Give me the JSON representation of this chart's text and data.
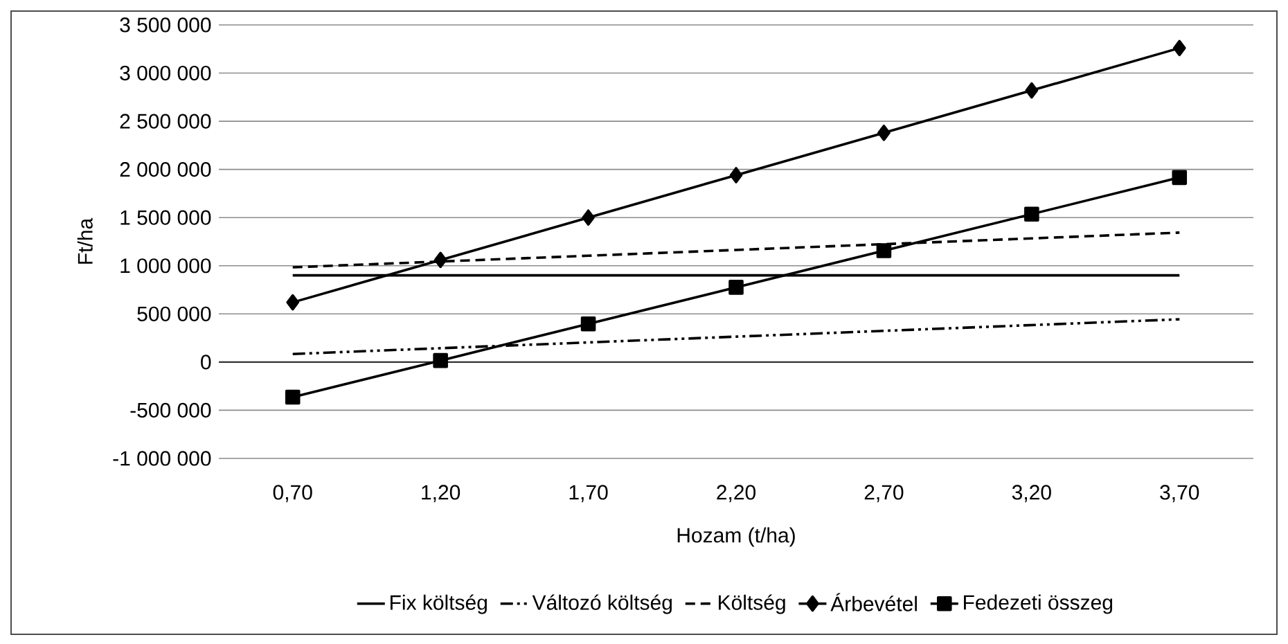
{
  "chart_data": {
    "type": "line",
    "xlabel": "Hozam (t/ha)",
    "ylabel": "Ft/ha",
    "categories": [
      "0,70",
      "1,20",
      "1,70",
      "2,20",
      "2,70",
      "3,20",
      "3,70"
    ],
    "series": [
      {
        "name": "Fix költség",
        "color": "#000000",
        "line_style": "solid",
        "marker": "none",
        "values": [
          900000,
          900000,
          900000,
          900000,
          900000,
          900000,
          900000
        ]
      },
      {
        "name": "Változó költség",
        "color": "#000000",
        "line_style": "dashdotdot",
        "marker": "none",
        "values": [
          84000,
          144000,
          204000,
          264000,
          324000,
          384000,
          444000
        ]
      },
      {
        "name": "Költség",
        "color": "#000000",
        "line_style": "dashed",
        "marker": "none",
        "values": [
          984000,
          1044000,
          1104000,
          1164000,
          1224000,
          1284000,
          1344000
        ]
      },
      {
        "name": "Árbevétel",
        "color": "#000000",
        "line_style": "solid",
        "marker": "diamond",
        "values": [
          620000,
          1060000,
          1500000,
          1940000,
          2380000,
          2820000,
          3260000
        ]
      },
      {
        "name": "Fedezeti összeg",
        "color": "#000000",
        "line_style": "solid",
        "marker": "square",
        "values": [
          -364000,
          16000,
          396000,
          776000,
          1156000,
          1536000,
          1916000
        ]
      }
    ],
    "ylim": [
      -1000000,
      3500000
    ],
    "yticks": [
      {
        "value": -1000000,
        "label": "-1 000 000"
      },
      {
        "value": -500000,
        "label": "-500 000"
      },
      0,
      {
        "value": 500000,
        "label": "500 000"
      },
      {
        "value": 1000000,
        "label": "1 000 000"
      },
      {
        "value": 1500000,
        "label": "1 500 000"
      },
      {
        "value": 2000000,
        "label": "2 000 000"
      },
      {
        "value": 2500000,
        "label": "2 500 000"
      },
      {
        "value": 3000000,
        "label": "3 000 000"
      },
      {
        "value": 3500000,
        "label": "3 500 000"
      }
    ],
    "grid": "y",
    "legend": "bottom"
  }
}
